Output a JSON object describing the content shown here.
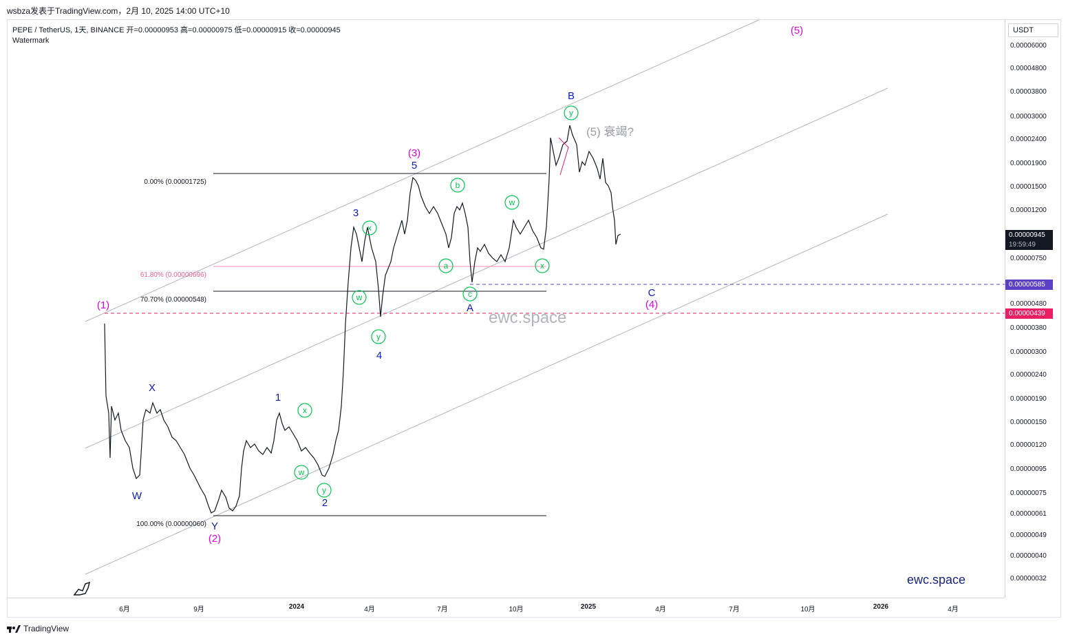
{
  "header": {
    "publisher": "wsbza发表于TradingView.com，2月 10, 2025 14:00 UTC+10",
    "symbol_line": "PEPE / TetherUS, 1天, BINANCE  开=0.00000953  高=0.00000975  低=0.00000915  收=0.00000945",
    "watermark_label": "Watermark"
  },
  "price_axis": {
    "currency": "USDT",
    "ticks": [
      "0.00006000",
      "0.00004800",
      "0.00003800",
      "0.00003000",
      "0.00002400",
      "0.00001900",
      "0.00001500",
      "0.00001200",
      "0.00000750",
      "0.00000480",
      "0.00000380",
      "0.00000300",
      "0.00000240",
      "0.00000190",
      "0.00000150",
      "0.00000120",
      "0.00000095",
      "0.00000075",
      "0.00000061",
      "0.00000049",
      "0.00000040",
      "0.00000032"
    ],
    "last_price": "0.00000945",
    "countdown": "19:59:49",
    "level_a": "0.00000585",
    "level_b": "0.00000439",
    "last_color": "#131722",
    "level_a_color": "#5b3fc4",
    "level_b_color": "#e91e63"
  },
  "time_axis": [
    "6月",
    "9月",
    "2024",
    "4月",
    "7月",
    "10月",
    "2025",
    "4月",
    "7月",
    "10月",
    "2026",
    "4月"
  ],
  "fib": {
    "l0": "0.00% (0.00001725)",
    "l618": "61.80% (0.00000696)",
    "l707": "70.70% (0.00000548)",
    "l100": "100.00% (0.00000060)"
  },
  "wave_labels": {
    "p1": "(1)",
    "p2": "(2)",
    "p3": "(3)",
    "p4": "(4)",
    "p5": "(5)",
    "X": "X",
    "W": "W",
    "Y": "Y",
    "w1": "1",
    "w2": "2",
    "w3": "3",
    "w4": "4",
    "w5": "5",
    "A": "A",
    "B": "B",
    "C": "C",
    "c_x1": "x",
    "c_w1": "w",
    "c_y1": "y",
    "c_x2": "x",
    "c_w2": "w",
    "c_y2": "y",
    "c_b": "b",
    "c_a": "a",
    "c_c": "c",
    "c_w3": "w",
    "c_x3": "x",
    "c_y3": "y"
  },
  "annotation": "(5) 衰竭?",
  "center_watermark": "ewc.space",
  "brand": "ewc.space",
  "footer": "TradingView"
}
